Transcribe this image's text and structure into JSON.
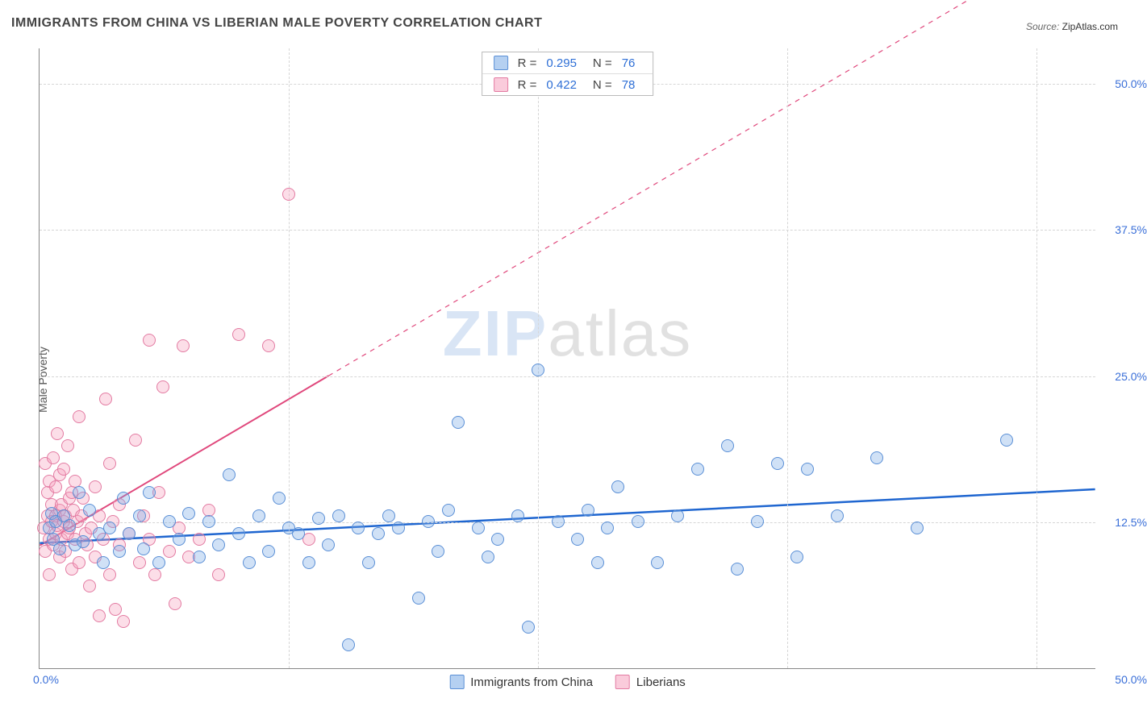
{
  "title": "IMMIGRANTS FROM CHINA VS LIBERIAN MALE POVERTY CORRELATION CHART",
  "source": {
    "label": "Source:",
    "value": "ZipAtlas.com"
  },
  "chart": {
    "type": "scatter",
    "ylabel": "Male Poverty",
    "xlim": [
      0,
      53
    ],
    "ylim": [
      0,
      53
    ],
    "ytick_values": [
      12.5,
      25,
      37.5,
      50
    ],
    "ytick_labels": [
      "12.5%",
      "25.0%",
      "37.5%",
      "50.0%"
    ],
    "xtick_grid": [
      12.5,
      25,
      37.5,
      50
    ],
    "xtick_min_label": "0.0%",
    "xtick_max_label": "50.0%",
    "background_color": "#ffffff",
    "grid_color": "#d6d6d6",
    "axis_color": "#888888",
    "point_radius": 8,
    "watermark": {
      "part1": "ZIP",
      "part2": "atlas"
    },
    "series": {
      "blue": {
        "label": "Immigrants from China",
        "fill": "rgba(120,170,230,0.35)",
        "stroke": "#5a8fd6",
        "trend": {
          "color": "#1f66d0",
          "width": 2.5,
          "x1": 0,
          "y1": 10.7,
          "x2": 53,
          "y2": 15.3,
          "dash": false,
          "dash_ext": null
        },
        "R": "0.295",
        "N": "76",
        "points": [
          [
            0.5,
            12.0
          ],
          [
            0.6,
            13.2
          ],
          [
            0.7,
            11.0
          ],
          [
            0.8,
            12.5
          ],
          [
            1.0,
            10.2
          ],
          [
            1.2,
            13.0
          ],
          [
            1.5,
            12.2
          ],
          [
            1.8,
            10.5
          ],
          [
            2.0,
            15.0
          ],
          [
            2.2,
            10.8
          ],
          [
            2.5,
            13.5
          ],
          [
            3.0,
            11.5
          ],
          [
            3.2,
            9.0
          ],
          [
            3.5,
            12.0
          ],
          [
            4.0,
            10.0
          ],
          [
            4.2,
            14.5
          ],
          [
            4.5,
            11.5
          ],
          [
            5.0,
            13.0
          ],
          [
            5.2,
            10.2
          ],
          [
            5.5,
            15.0
          ],
          [
            6.0,
            9.0
          ],
          [
            6.5,
            12.5
          ],
          [
            7.0,
            11.0
          ],
          [
            7.5,
            13.2
          ],
          [
            8.0,
            9.5
          ],
          [
            8.5,
            12.5
          ],
          [
            9.0,
            10.5
          ],
          [
            9.5,
            16.5
          ],
          [
            10.0,
            11.5
          ],
          [
            10.5,
            9.0
          ],
          [
            11.0,
            13.0
          ],
          [
            11.5,
            10.0
          ],
          [
            12.0,
            14.5
          ],
          [
            12.5,
            12.0
          ],
          [
            13.0,
            11.5
          ],
          [
            13.5,
            9.0
          ],
          [
            14.0,
            12.8
          ],
          [
            14.5,
            10.5
          ],
          [
            15.0,
            13.0
          ],
          [
            15.5,
            2.0
          ],
          [
            16.0,
            12.0
          ],
          [
            16.5,
            9.0
          ],
          [
            17.0,
            11.5
          ],
          [
            17.5,
            13.0
          ],
          [
            18.0,
            12.0
          ],
          [
            19.0,
            6.0
          ],
          [
            19.5,
            12.5
          ],
          [
            20.0,
            10.0
          ],
          [
            20.5,
            13.5
          ],
          [
            21.0,
            21.0
          ],
          [
            22.0,
            12.0
          ],
          [
            22.5,
            9.5
          ],
          [
            23.0,
            11.0
          ],
          [
            24.0,
            13.0
          ],
          [
            24.5,
            3.5
          ],
          [
            25.0,
            25.5
          ],
          [
            26.0,
            12.5
          ],
          [
            27.0,
            11.0
          ],
          [
            27.5,
            13.5
          ],
          [
            28.0,
            9.0
          ],
          [
            28.5,
            12.0
          ],
          [
            29.0,
            15.5
          ],
          [
            30.0,
            12.5
          ],
          [
            31.0,
            9.0
          ],
          [
            32.0,
            13.0
          ],
          [
            33.0,
            17.0
          ],
          [
            34.5,
            19.0
          ],
          [
            35.0,
            8.5
          ],
          [
            36.0,
            12.5
          ],
          [
            37.0,
            17.5
          ],
          [
            38.0,
            9.5
          ],
          [
            38.5,
            17.0
          ],
          [
            40.0,
            13.0
          ],
          [
            42.0,
            18.0
          ],
          [
            44.0,
            12.0
          ],
          [
            48.5,
            19.5
          ]
        ]
      },
      "pink": {
        "label": "Liberians",
        "fill": "rgba(245,160,190,0.35)",
        "stroke": "#e37ba2",
        "trend": {
          "color": "#e0487c",
          "width": 2,
          "x1": 0,
          "y1": 10.5,
          "x2": 14.5,
          "y2": 25.0,
          "dash": true,
          "dash_ext": {
            "x2": 53,
            "y2": 63.5
          }
        },
        "R": "0.422",
        "N": "78",
        "points": [
          [
            0.2,
            12.0
          ],
          [
            0.3,
            17.5
          ],
          [
            0.3,
            10.0
          ],
          [
            0.4,
            15.0
          ],
          [
            0.4,
            13.0
          ],
          [
            0.5,
            11.0
          ],
          [
            0.5,
            16.0
          ],
          [
            0.5,
            8.0
          ],
          [
            0.6,
            14.0
          ],
          [
            0.6,
            12.5
          ],
          [
            0.7,
            18.0
          ],
          [
            0.7,
            10.5
          ],
          [
            0.8,
            13.0
          ],
          [
            0.8,
            15.5
          ],
          [
            0.8,
            11.5
          ],
          [
            0.9,
            12.2
          ],
          [
            0.9,
            20.0
          ],
          [
            1.0,
            9.5
          ],
          [
            1.0,
            13.5
          ],
          [
            1.0,
            16.5
          ],
          [
            1.1,
            11.0
          ],
          [
            1.1,
            14.0
          ],
          [
            1.2,
            12.5
          ],
          [
            1.2,
            17.0
          ],
          [
            1.3,
            10.0
          ],
          [
            1.3,
            13.0
          ],
          [
            1.4,
            19.0
          ],
          [
            1.4,
            11.5
          ],
          [
            1.5,
            14.5
          ],
          [
            1.5,
            12.0
          ],
          [
            1.6,
            8.5
          ],
          [
            1.6,
            15.0
          ],
          [
            1.7,
            13.5
          ],
          [
            1.8,
            11.0
          ],
          [
            1.8,
            16.0
          ],
          [
            1.9,
            12.5
          ],
          [
            2.0,
            21.5
          ],
          [
            2.0,
            9.0
          ],
          [
            2.1,
            13.0
          ],
          [
            2.2,
            14.5
          ],
          [
            2.3,
            11.5
          ],
          [
            2.4,
            10.5
          ],
          [
            2.5,
            7.0
          ],
          [
            2.6,
            12.0
          ],
          [
            2.8,
            15.5
          ],
          [
            2.8,
            9.5
          ],
          [
            3.0,
            4.5
          ],
          [
            3.0,
            13.0
          ],
          [
            3.2,
            11.0
          ],
          [
            3.3,
            23.0
          ],
          [
            3.5,
            8.0
          ],
          [
            3.5,
            17.5
          ],
          [
            3.7,
            12.5
          ],
          [
            3.8,
            5.0
          ],
          [
            4.0,
            10.5
          ],
          [
            4.0,
            14.0
          ],
          [
            4.2,
            4.0
          ],
          [
            4.5,
            11.5
          ],
          [
            4.8,
            19.5
          ],
          [
            5.0,
            9.0
          ],
          [
            5.2,
            13.0
          ],
          [
            5.5,
            28.0
          ],
          [
            5.5,
            11.0
          ],
          [
            5.8,
            8.0
          ],
          [
            6.0,
            15.0
          ],
          [
            6.2,
            24.0
          ],
          [
            6.5,
            10.0
          ],
          [
            6.8,
            5.5
          ],
          [
            7.0,
            12.0
          ],
          [
            7.2,
            27.5
          ],
          [
            7.5,
            9.5
          ],
          [
            8.0,
            11.0
          ],
          [
            8.5,
            13.5
          ],
          [
            9.0,
            8.0
          ],
          [
            10.0,
            28.5
          ],
          [
            11.5,
            27.5
          ],
          [
            12.5,
            40.5
          ],
          [
            13.5,
            11.0
          ]
        ]
      }
    },
    "stats_box": {
      "rows": [
        {
          "swatch": "blue",
          "R_label": "R =",
          "R_value": "0.295",
          "N_label": "N =",
          "N_value": "76"
        },
        {
          "swatch": "pink",
          "R_label": "R =",
          "R_value": "0.422",
          "N_label": "N =",
          "N_value": "78"
        }
      ]
    },
    "legend": [
      {
        "swatch": "blue",
        "label": "Immigrants from China"
      },
      {
        "swatch": "pink",
        "label": "Liberians"
      }
    ]
  }
}
